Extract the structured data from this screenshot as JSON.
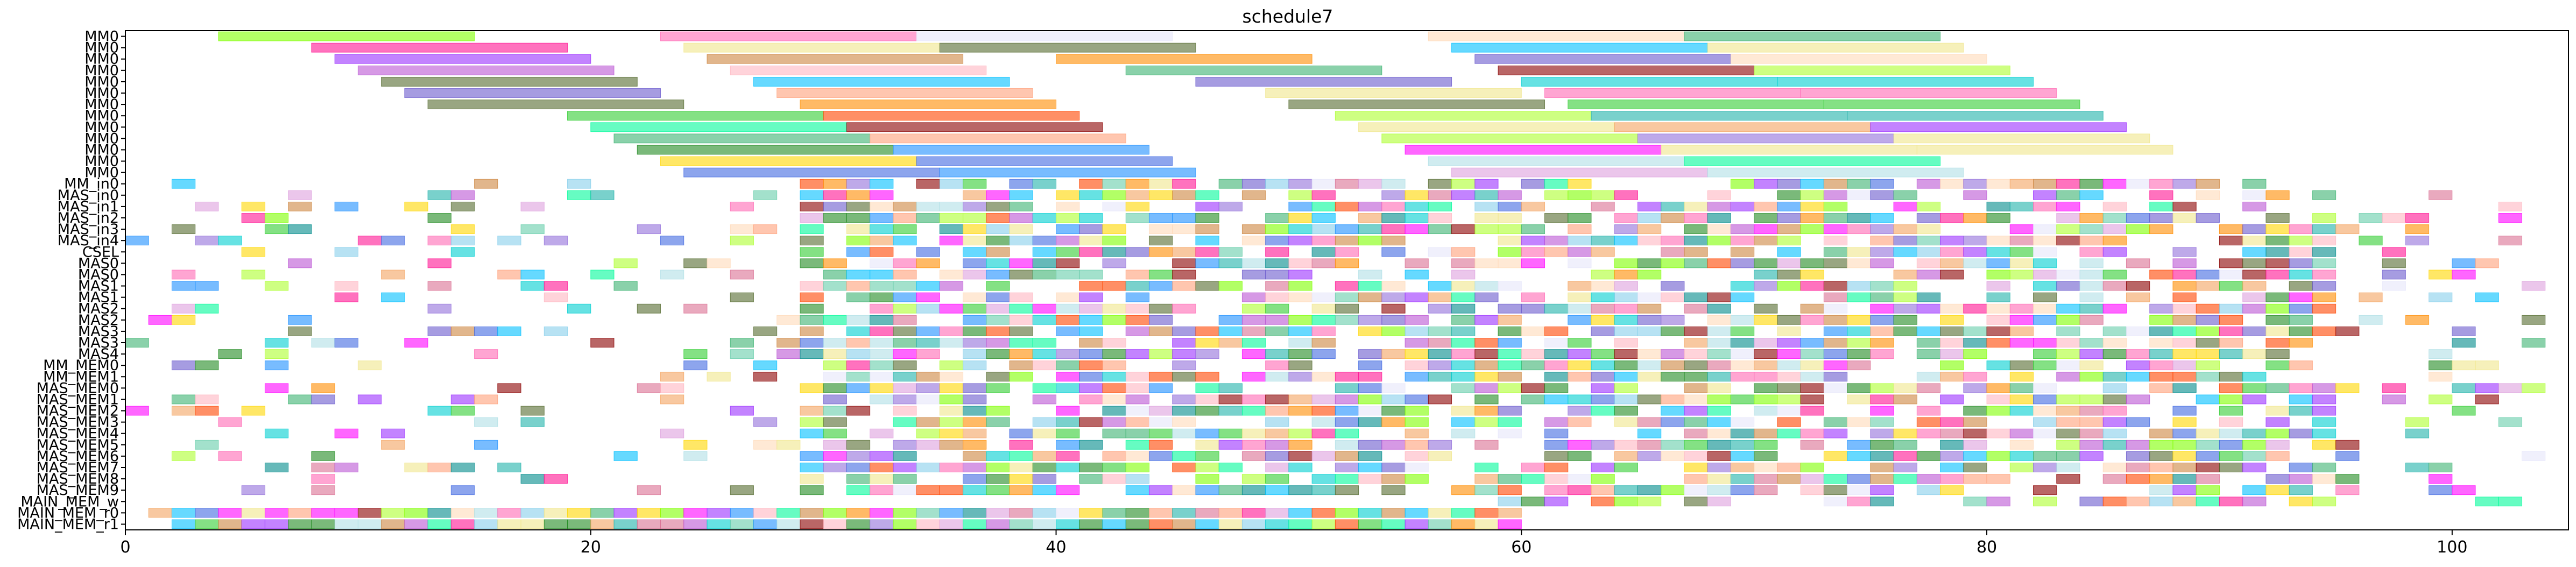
{
  "chart_data": {
    "type": "gantt",
    "title": "schedule7",
    "xlabel": "",
    "ylabel": "",
    "xlim": [
      0,
      105
    ],
    "x_ticks": [
      0,
      20,
      40,
      60,
      80,
      100
    ],
    "grid": false,
    "row_labels": [
      "MM0",
      "MM0",
      "MM0",
      "MM0",
      "MM0",
      "MM0",
      "MM0",
      "MM0",
      "MM0",
      "MM0",
      "MM0",
      "MM0",
      "MM0",
      "MM_in0",
      "MAS_in0",
      "MAS_in1",
      "MAS_in2",
      "MAS_in3",
      "MAS_in4",
      "CSEL",
      "MAS0",
      "MAS0",
      "MAS1",
      "MAS1",
      "MAS2",
      "MAS2",
      "MAS3",
      "MAS3",
      "MAS4",
      "MM_MEM0",
      "MM_MEM1",
      "MAS_MEM0",
      "MAS_MEM1",
      "MAS_MEM2",
      "MAS_MEM3",
      "MAS_MEM4",
      "MAS_MEM5",
      "MAS_MEM6",
      "MAS_MEM7",
      "MAS_MEM8",
      "MAS_MEM9",
      "MAIN_MEM_w",
      "MAIN_MEM_r0",
      "MAIN_MEM_r1"
    ],
    "palette": [
      "#7fff00",
      "#ff69b4",
      "#9b30ff",
      "#00ced1",
      "#ffd700",
      "#ff4500",
      "#32cd32",
      "#1e90ff",
      "#ff1493",
      "#8b0000",
      "#66cdaa",
      "#dda0dd",
      "#ffa07a",
      "#4169e1",
      "#adff2f",
      "#ff8c00",
      "#00fa9a",
      "#ba55d3",
      "#87ceeb",
      "#f0e68c",
      "#228b22",
      "#db7093",
      "#6a5acd",
      "#20b2aa",
      "#cd853f",
      "#e6e6fa",
      "#00bfff",
      "#ff00ff",
      "#b0e0e6",
      "#556b2f",
      "#ffb6c1",
      "#3cb371",
      "#ffdab9",
      "#9370db",
      "#f4a460",
      "#008b8b"
    ],
    "tasks": [
      {
        "row": 0,
        "start": 4,
        "end": 15,
        "c": 0
      },
      {
        "row": 0,
        "start": 23,
        "end": 34,
        "c": 1
      },
      {
        "row": 0,
        "start": 34,
        "end": 45,
        "c": 25
      },
      {
        "row": 0,
        "start": 56,
        "end": 67,
        "c": 32
      },
      {
        "row": 0,
        "start": 67,
        "end": 78,
        "c": 31
      },
      {
        "row": 1,
        "start": 8,
        "end": 19,
        "c": 8
      },
      {
        "row": 1,
        "start": 24,
        "end": 35,
        "c": 19
      },
      {
        "row": 1,
        "start": 35,
        "end": 46,
        "c": 29
      },
      {
        "row": 1,
        "start": 57,
        "end": 68,
        "c": 26
      },
      {
        "row": 1,
        "start": 68,
        "end": 79,
        "c": 19
      },
      {
        "row": 2,
        "start": 9,
        "end": 20,
        "c": 2
      },
      {
        "row": 2,
        "start": 25,
        "end": 36,
        "c": 24
      },
      {
        "row": 2,
        "start": 40,
        "end": 51,
        "c": 15
      },
      {
        "row": 2,
        "start": 58,
        "end": 69,
        "c": 22
      },
      {
        "row": 2,
        "start": 69,
        "end": 80,
        "c": 32
      },
      {
        "row": 3,
        "start": 10,
        "end": 21,
        "c": 17
      },
      {
        "row": 3,
        "start": 26,
        "end": 37,
        "c": 30
      },
      {
        "row": 3,
        "start": 43,
        "end": 54,
        "c": 31
      },
      {
        "row": 3,
        "start": 59,
        "end": 70,
        "c": 9
      },
      {
        "row": 3,
        "start": 70,
        "end": 81,
        "c": 14
      },
      {
        "row": 4,
        "start": 11,
        "end": 22,
        "c": 29
      },
      {
        "row": 4,
        "start": 27,
        "end": 38,
        "c": 26
      },
      {
        "row": 4,
        "start": 46,
        "end": 57,
        "c": 22
      },
      {
        "row": 4,
        "start": 60,
        "end": 71,
        "c": 3
      },
      {
        "row": 4,
        "start": 71,
        "end": 82,
        "c": 3
      },
      {
        "row": 5,
        "start": 12,
        "end": 23,
        "c": 22
      },
      {
        "row": 5,
        "start": 28,
        "end": 39,
        "c": 12
      },
      {
        "row": 5,
        "start": 49,
        "end": 60,
        "c": 19
      },
      {
        "row": 5,
        "start": 61,
        "end": 72,
        "c": 1
      },
      {
        "row": 5,
        "start": 72,
        "end": 83,
        "c": 1
      },
      {
        "row": 6,
        "start": 13,
        "end": 24,
        "c": 29
      },
      {
        "row": 6,
        "start": 29,
        "end": 40,
        "c": 15
      },
      {
        "row": 6,
        "start": 50,
        "end": 61,
        "c": 29
      },
      {
        "row": 6,
        "start": 62,
        "end": 73,
        "c": 6
      },
      {
        "row": 6,
        "start": 73,
        "end": 84,
        "c": 6
      },
      {
        "row": 7,
        "start": 19,
        "end": 30,
        "c": 6
      },
      {
        "row": 7,
        "start": 30,
        "end": 41,
        "c": 5
      },
      {
        "row": 7,
        "start": 52,
        "end": 63,
        "c": 14
      },
      {
        "row": 7,
        "start": 63,
        "end": 74,
        "c": 23
      },
      {
        "row": 7,
        "start": 74,
        "end": 85,
        "c": 23
      },
      {
        "row": 8,
        "start": 20,
        "end": 31,
        "c": 16
      },
      {
        "row": 8,
        "start": 31,
        "end": 42,
        "c": 9
      },
      {
        "row": 8,
        "start": 53,
        "end": 64,
        "c": 19
      },
      {
        "row": 8,
        "start": 64,
        "end": 75,
        "c": 34
      },
      {
        "row": 8,
        "start": 75,
        "end": 86,
        "c": 2
      },
      {
        "row": 9,
        "start": 21,
        "end": 32,
        "c": 31
      },
      {
        "row": 9,
        "start": 32,
        "end": 43,
        "c": 12
      },
      {
        "row": 9,
        "start": 54,
        "end": 65,
        "c": 14
      },
      {
        "row": 9,
        "start": 65,
        "end": 76,
        "c": 33
      },
      {
        "row": 9,
        "start": 76,
        "end": 87,
        "c": 19
      },
      {
        "row": 10,
        "start": 22,
        "end": 33,
        "c": 20
      },
      {
        "row": 10,
        "start": 33,
        "end": 44,
        "c": 7
      },
      {
        "row": 10,
        "start": 55,
        "end": 66,
        "c": 27
      },
      {
        "row": 10,
        "start": 66,
        "end": 77,
        "c": 19
      },
      {
        "row": 10,
        "start": 77,
        "end": 88,
        "c": 19
      },
      {
        "row": 11,
        "start": 23,
        "end": 34,
        "c": 4
      },
      {
        "row": 11,
        "start": 34,
        "end": 45,
        "c": 13
      },
      {
        "row": 11,
        "start": 56,
        "end": 67,
        "c": 28
      },
      {
        "row": 11,
        "start": 67,
        "end": 78,
        "c": 16
      },
      {
        "row": 12,
        "start": 24,
        "end": 35,
        "c": 13
      },
      {
        "row": 12,
        "start": 35,
        "end": 46,
        "c": 7
      },
      {
        "row": 12,
        "start": 57,
        "end": 68,
        "c": 11
      },
      {
        "row": 12,
        "start": 68,
        "end": 79,
        "c": 28
      }
    ],
    "filler": {
      "first_row": 13,
      "last_row": 43,
      "seed": 7,
      "density": 0.55
    }
  }
}
